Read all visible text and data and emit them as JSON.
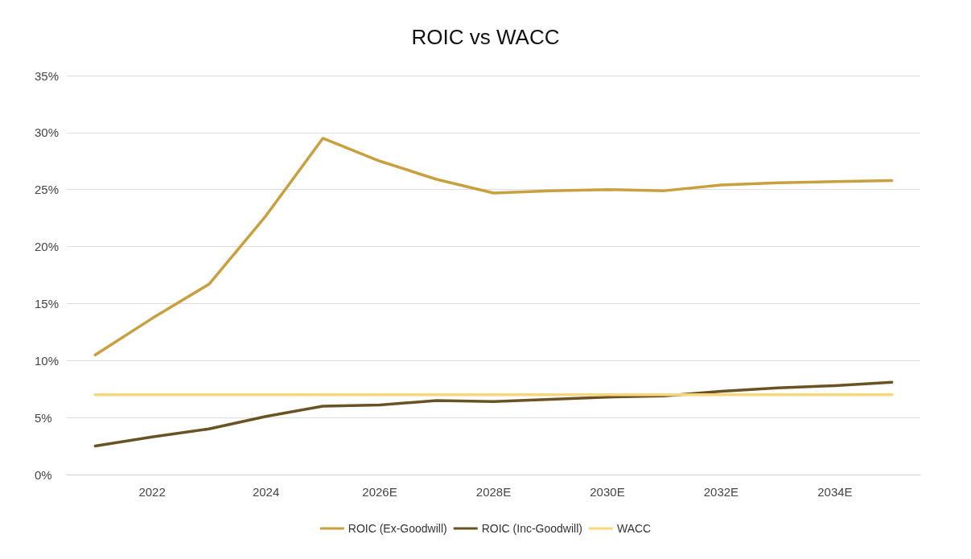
{
  "chart_data": {
    "type": "line",
    "title": "ROIC vs WACC",
    "categories": [
      null,
      "2022",
      null,
      "2024",
      null,
      "2026E",
      null,
      "2028E",
      null,
      "2030E",
      null,
      "2032E",
      null,
      "2034E",
      null
    ],
    "series": [
      {
        "name": "ROIC (Ex-Goodwill)",
        "color": "#c9a03f",
        "values": [
          10.5,
          13.7,
          16.7,
          22.7,
          29.5,
          27.5,
          25.9,
          24.7,
          24.9,
          25.0,
          24.9,
          25.4,
          25.6,
          25.7,
          25.8
        ]
      },
      {
        "name": "ROIC (Inc-Goodwill)",
        "color": "#6b5225",
        "values": [
          2.5,
          3.3,
          4.0,
          5.1,
          6.0,
          6.1,
          6.5,
          6.4,
          6.6,
          6.8,
          6.9,
          7.3,
          7.6,
          7.8,
          8.1
        ]
      },
      {
        "name": "WACC",
        "color": "#f7d77a",
        "values": [
          7,
          7,
          7,
          7,
          7,
          7,
          7,
          7,
          7,
          7,
          7,
          7,
          7,
          7,
          7
        ]
      }
    ],
    "ylim": [
      0,
      35
    ],
    "yticks": [
      {
        "value": 0,
        "label": "0%"
      },
      {
        "value": 5,
        "label": "5%"
      },
      {
        "value": 10,
        "label": "10%"
      },
      {
        "value": 15,
        "label": "15%"
      },
      {
        "value": 20,
        "label": "20%"
      },
      {
        "value": 25,
        "label": "25%"
      },
      {
        "value": 30,
        "label": "30%"
      },
      {
        "value": 35,
        "label": "35%"
      }
    ],
    "grid": "y",
    "legend": "bottom",
    "marker": "none",
    "line_style": "solid"
  }
}
